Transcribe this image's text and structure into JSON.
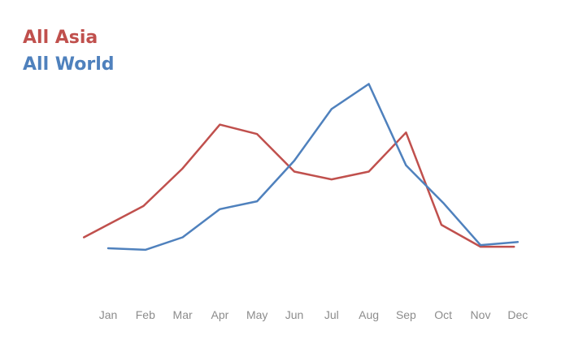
{
  "chart_data": {
    "type": "line",
    "categories": [
      "Jan",
      "Feb",
      "Mar",
      "Apr",
      "May",
      "Jun",
      "Jul",
      "Aug",
      "Sep",
      "Oct",
      "Nov",
      "Dec"
    ],
    "series": [
      {
        "name": "All Asia",
        "color": "#c0504d",
        "values": [
          1.0,
          3.0,
          5.4,
          8.2,
          7.6,
          5.2,
          4.7,
          5.2,
          7.7,
          1.8,
          0.4,
          0.4
        ],
        "x_offset": [
          -0.65,
          -0.05,
          0.0,
          0.0,
          0.0,
          0.0,
          0.0,
          0.0,
          0.0,
          -0.05,
          0.0,
          -0.1
        ]
      },
      {
        "name": "All World",
        "color": "#4f81bd",
        "values": [
          0.3,
          0.2,
          1.0,
          2.8,
          3.3,
          5.9,
          9.2,
          10.8,
          5.6,
          3.2,
          0.5,
          0.7
        ]
      }
    ],
    "legend_position": "top-left",
    "grid": false,
    "ylim": [
      -2.5,
      11.5
    ],
    "title": "",
    "xlabel": "",
    "ylabel": ""
  }
}
